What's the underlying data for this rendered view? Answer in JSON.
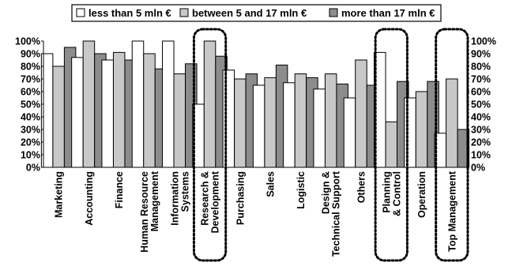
{
  "chart_data": {
    "type": "bar",
    "title": "",
    "xlabel": "",
    "ylabel": "",
    "ylim": [
      0,
      100
    ],
    "y_ticks": [
      "0%",
      "10%",
      "20%",
      "30%",
      "40%",
      "50%",
      "60%",
      "70%",
      "80%",
      "90%",
      "100%"
    ],
    "categories": [
      "Marketing",
      "Accounting",
      "Finance",
      "Human Resource Management",
      "Information Systems",
      "Research & Development",
      "Purchasing",
      "Sales",
      "Logistic",
      "Design & Technical Support",
      "Others",
      "Planning & Control",
      "Operation",
      "Top Management"
    ],
    "category_lines": [
      [
        "Marketing"
      ],
      [
        "Accounting"
      ],
      [
        "Finance"
      ],
      [
        "Human Resource",
        "Management"
      ],
      [
        "Information",
        "Systems"
      ],
      [
        "Research &",
        "Development"
      ],
      [
        "Purchasing"
      ],
      [
        "Sales"
      ],
      [
        "Logistic"
      ],
      [
        "Design &",
        "Technical Support"
      ],
      [
        "Others"
      ],
      [
        "Planning",
        "& Control"
      ],
      [
        "Operation"
      ],
      [
        "Top Management"
      ]
    ],
    "highlighted_categories": [
      "Research & Development",
      "Planning & Control",
      "Top Management"
    ],
    "legend_position": "top",
    "grid": false,
    "series": [
      {
        "name": "less than 5 mln €",
        "color": "#ffffff",
        "values": [
          90,
          87,
          85,
          100,
          100,
          50,
          77,
          65,
          67,
          62,
          55,
          91,
          55,
          27
        ]
      },
      {
        "name": "between 5 and 17 mln €",
        "color": "#c8c8c8",
        "values": [
          80,
          100,
          91,
          90,
          74,
          100,
          70,
          71,
          74,
          74,
          85,
          36,
          60,
          70
        ]
      },
      {
        "name": "more than 17 mln €",
        "color": "#8c8c8c",
        "values": [
          95,
          90,
          85,
          78,
          82,
          88,
          74,
          81,
          71,
          66,
          65,
          68,
          68,
          30
        ]
      }
    ]
  }
}
